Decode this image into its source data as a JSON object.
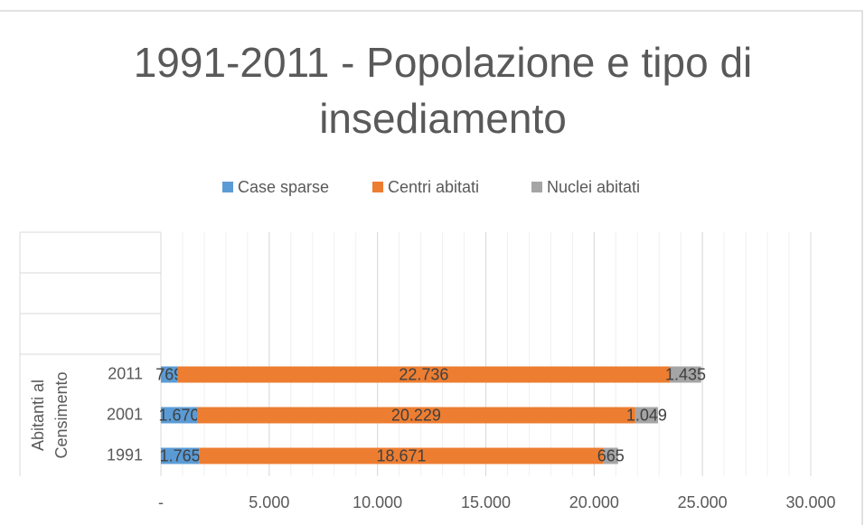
{
  "chart_data": {
    "type": "stacked-horizontal-bar",
    "title": "1991-2011 - Popolazione e tipo di insediamento",
    "category_group": [
      "Abitanti al",
      "Censimento"
    ],
    "categories": [
      "1991",
      "2001",
      "2011",
      null,
      null,
      null
    ],
    "series": [
      {
        "name": "Case sparse",
        "color": "#5b9bd5",
        "values": [
          1765,
          1670,
          769,
          null,
          null,
          null
        ],
        "value_labels": [
          "1.765",
          "1.670",
          "769",
          null,
          null,
          null
        ]
      },
      {
        "name": "Centri abitati",
        "color": "#ed7d31",
        "values": [
          18671,
          20229,
          22736,
          null,
          null,
          null
        ],
        "value_labels": [
          "18.671",
          "20.229",
          "22.736",
          null,
          null,
          null
        ]
      },
      {
        "name": "Nuclei abitati",
        "color": "#a5a5a5",
        "values": [
          665,
          1049,
          1435,
          null,
          null,
          null
        ],
        "value_labels": [
          "665",
          "1.049",
          "1.435",
          null,
          null,
          null
        ]
      }
    ],
    "xlim": [
      0,
      30000
    ],
    "xticks": [
      {
        "value": 0,
        "label": "-"
      },
      {
        "value": 5000,
        "label": "5.000"
      },
      {
        "value": 10000,
        "label": "10.000"
      },
      {
        "value": 15000,
        "label": "15.000"
      },
      {
        "value": 20000,
        "label": "20.000"
      },
      {
        "value": 25000,
        "label": "25.000"
      },
      {
        "value": 30000,
        "label": "30.000"
      }
    ],
    "grid": true,
    "minor_grid_step": 1000,
    "legend": "top"
  }
}
